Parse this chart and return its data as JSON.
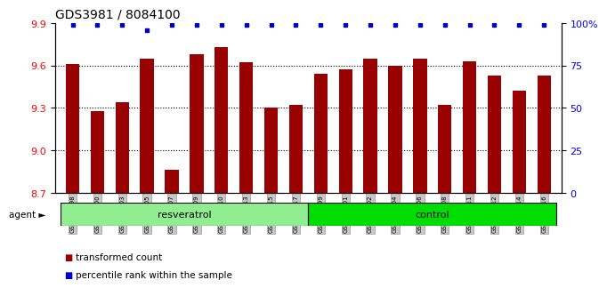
{
  "title": "GDS3981 / 8084100",
  "samples": [
    "GSM801198",
    "GSM801200",
    "GSM801203",
    "GSM801205",
    "GSM801207",
    "GSM801209",
    "GSM801210",
    "GSM801213",
    "GSM801215",
    "GSM801217",
    "GSM801199",
    "GSM801201",
    "GSM801202",
    "GSM801204",
    "GSM801206",
    "GSM801208",
    "GSM801211",
    "GSM801212",
    "GSM801214",
    "GSM801216"
  ],
  "transformed_counts": [
    9.61,
    9.28,
    9.34,
    9.65,
    8.86,
    9.68,
    9.73,
    9.62,
    9.3,
    9.32,
    9.54,
    9.57,
    9.65,
    9.6,
    9.65,
    9.32,
    9.63,
    9.53,
    9.42,
    9.53
  ],
  "percentile_ranks": [
    100,
    100,
    100,
    97,
    100,
    100,
    100,
    100,
    100,
    100,
    100,
    100,
    100,
    100,
    100,
    100,
    100,
    100,
    100,
    100
  ],
  "groups": [
    {
      "label": "resveratrol",
      "start": 0,
      "end": 10,
      "color": "#90EE90"
    },
    {
      "label": "control",
      "start": 10,
      "end": 20,
      "color": "#00DD00"
    }
  ],
  "bar_color": "#990000",
  "dot_color": "#0000CC",
  "ylim_left": [
    8.7,
    9.9
  ],
  "ylim_right": [
    0,
    100
  ],
  "yticks_left": [
    8.7,
    9.0,
    9.3,
    9.6,
    9.9
  ],
  "yticks_right": [
    0,
    25,
    50,
    75,
    100
  ],
  "agent_label": "agent",
  "legend_items": [
    {
      "color": "#990000",
      "label": "transformed count"
    },
    {
      "color": "#0000CC",
      "label": "percentile rank within the sample"
    }
  ]
}
